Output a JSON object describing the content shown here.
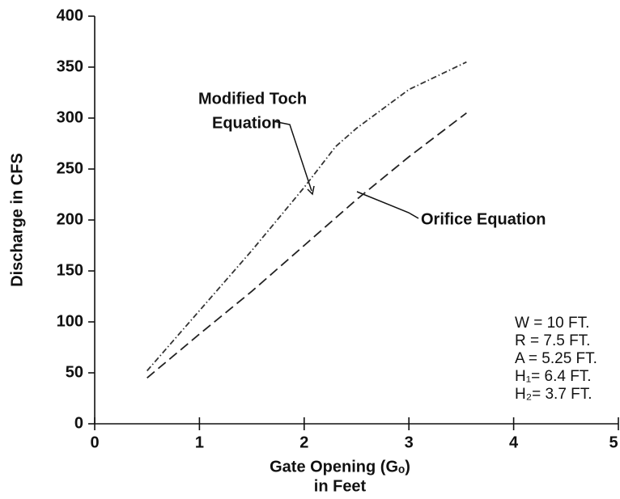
{
  "chart_data": {
    "type": "line",
    "xlabel": "Gate Opening (Gₒ)",
    "xlabel2": "in Feet",
    "ylabel": "Discharge in CFS",
    "xlim": [
      0,
      5
    ],
    "xticks": [
      0,
      1,
      2,
      3,
      4,
      5
    ],
    "ylim": [
      0,
      400
    ],
    "yticks": [
      0,
      50,
      100,
      150,
      200,
      250,
      300,
      350,
      400
    ],
    "series": [
      {
        "name": "Modified Toch Equation",
        "color": "#333333",
        "style": "dashdot",
        "x": [
          0.5,
          1,
          1.5,
          2,
          2.3,
          2.5,
          3,
          3.55
        ],
        "values": [
          52,
          111,
          170,
          232,
          272,
          290,
          328,
          355
        ]
      },
      {
        "name": "Orifice Equation",
        "color": "#222222",
        "style": "dashed",
        "x": [
          0.5,
          1,
          1.5,
          2,
          2.5,
          3,
          3.55
        ],
        "values": [
          45,
          88,
          130,
          175,
          220,
          262,
          305
        ]
      }
    ],
    "labels": [
      "Modified Toch",
      "Equation",
      "Orifice Equation"
    ],
    "parameters": [
      "W = 10 FT.",
      "R = 7.5 FT.",
      "A = 5.25 FT.",
      "H₁= 6.4 FT.",
      "H₂= 3.7 FT."
    ]
  }
}
